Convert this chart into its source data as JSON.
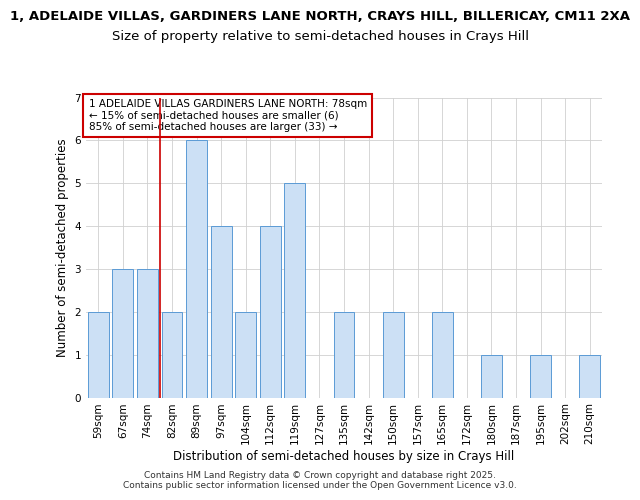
{
  "title_line1": "1, ADELAIDE VILLAS, GARDINERS LANE NORTH, CRAYS HILL, BILLERICAY, CM11 2XA",
  "title_line2": "Size of property relative to semi-detached houses in Crays Hill",
  "xlabel": "Distribution of semi-detached houses by size in Crays Hill",
  "ylabel": "Number of semi-detached properties",
  "categories": [
    "59sqm",
    "67sqm",
    "74sqm",
    "82sqm",
    "89sqm",
    "97sqm",
    "104sqm",
    "112sqm",
    "119sqm",
    "127sqm",
    "135sqm",
    "142sqm",
    "150sqm",
    "157sqm",
    "165sqm",
    "172sqm",
    "180sqm",
    "187sqm",
    "195sqm",
    "202sqm",
    "210sqm"
  ],
  "values": [
    2,
    3,
    3,
    2,
    6,
    4,
    2,
    4,
    5,
    0,
    2,
    0,
    2,
    0,
    2,
    0,
    1,
    0,
    1,
    0,
    1
  ],
  "bar_color": "#cce0f5",
  "bar_edge_color": "#5b9bd5",
  "vline_x": 2.5,
  "vline_color": "#cc0000",
  "annotation_text": "1 ADELAIDE VILLAS GARDINERS LANE NORTH: 78sqm\n← 15% of semi-detached houses are smaller (6)\n85% of semi-detached houses are larger (33) →",
  "annotation_box_color": "#ffffff",
  "annotation_box_edge": "#cc0000",
  "ylim": [
    0,
    7
  ],
  "yticks": [
    0,
    1,
    2,
    3,
    4,
    5,
    6,
    7
  ],
  "footer_text": "Contains HM Land Registry data © Crown copyright and database right 2025.\nContains public sector information licensed under the Open Government Licence v3.0.",
  "title_fontsize": 9.5,
  "subtitle_fontsize": 9.5,
  "axis_label_fontsize": 8.5,
  "tick_fontsize": 7.5,
  "annotation_fontsize": 7.5,
  "footer_fontsize": 6.5,
  "background_color": "#ffffff",
  "grid_color": "#d0d0d0"
}
